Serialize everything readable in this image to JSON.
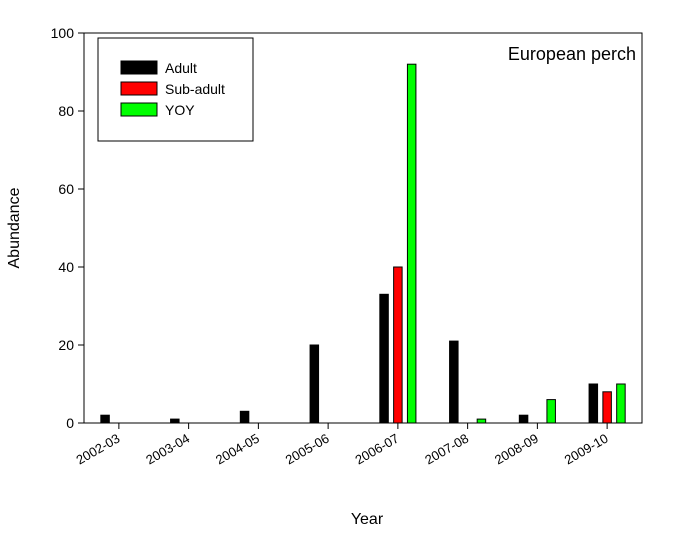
{
  "chart_data": {
    "type": "bar",
    "title": "European perch",
    "xlabel": "Year",
    "ylabel": "Abundance",
    "ylim": [
      0,
      100
    ],
    "yticks": [
      0,
      20,
      40,
      60,
      80,
      100
    ],
    "grid": false,
    "legend_position": "top-left",
    "categories": [
      "2002-03",
      "2003-04",
      "2004-05",
      "2005-06",
      "2006-07",
      "2007-08",
      "2008-09",
      "2009-10"
    ],
    "series": [
      {
        "name": "Adult",
        "color": "#000000",
        "values": [
          2,
          1,
          3,
          20,
          33,
          21,
          2,
          10
        ]
      },
      {
        "name": "Sub-adult",
        "color": "#ff0000",
        "values": [
          0,
          0,
          0,
          0,
          40,
          0,
          0,
          8
        ]
      },
      {
        "name": "YOY",
        "color": "#00ff00",
        "values": [
          0,
          0,
          0,
          0,
          92,
          1,
          6,
          10
        ]
      }
    ]
  }
}
